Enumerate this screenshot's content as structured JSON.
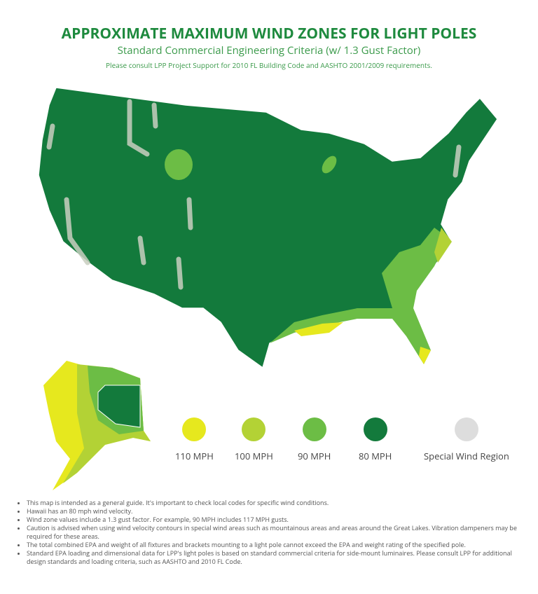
{
  "header": {
    "title": "APPROXIMATE MAXIMUM WIND ZONES FOR LIGHT POLES",
    "subtitle": "Standard Commercial Engineering Criteria (w/ 1.3 Gust Factor)",
    "note": "Please consult LPP Project Support for 2010 FL Building Code and AASHTO 2001/2009 requirements."
  },
  "legend": [
    {
      "label": "110 MPH",
      "color": "#e6e81e"
    },
    {
      "label": "100 MPH",
      "color": "#b3d235"
    },
    {
      "label": "90 MPH",
      "color": "#6cbd45"
    },
    {
      "label": "80 MPH",
      "color": "#137a3c"
    },
    {
      "label": "Special Wind Region",
      "color": "#dddddd"
    }
  ],
  "notes": [
    "This map is intended as a general guide. It's important to check local codes for specific wind conditions.",
    "Hawaii has an 80 mph wind velocity.",
    "Wind zone values include a 1.3 gust factor. For example, 90 MPH includes 117 MPH gusts.",
    "Caution is advised when using wind velocity contours in special wind areas such as mountainous areas and areas around the Great Lakes. Vibration dampeners may be required for these areas.",
    "The total combined EPA and weight of all fixtures and brackets mounting to a light pole cannot exceed the EPA and weight rating of the specified pole.",
    "Standard EPA loading and dimensional data for LPP's light poles is based on standard commercial criteria for side-mount luminaires. Please consult LPP for additional design standards and loading criteria, such as AASHTO and 2010 FL Code."
  ]
}
